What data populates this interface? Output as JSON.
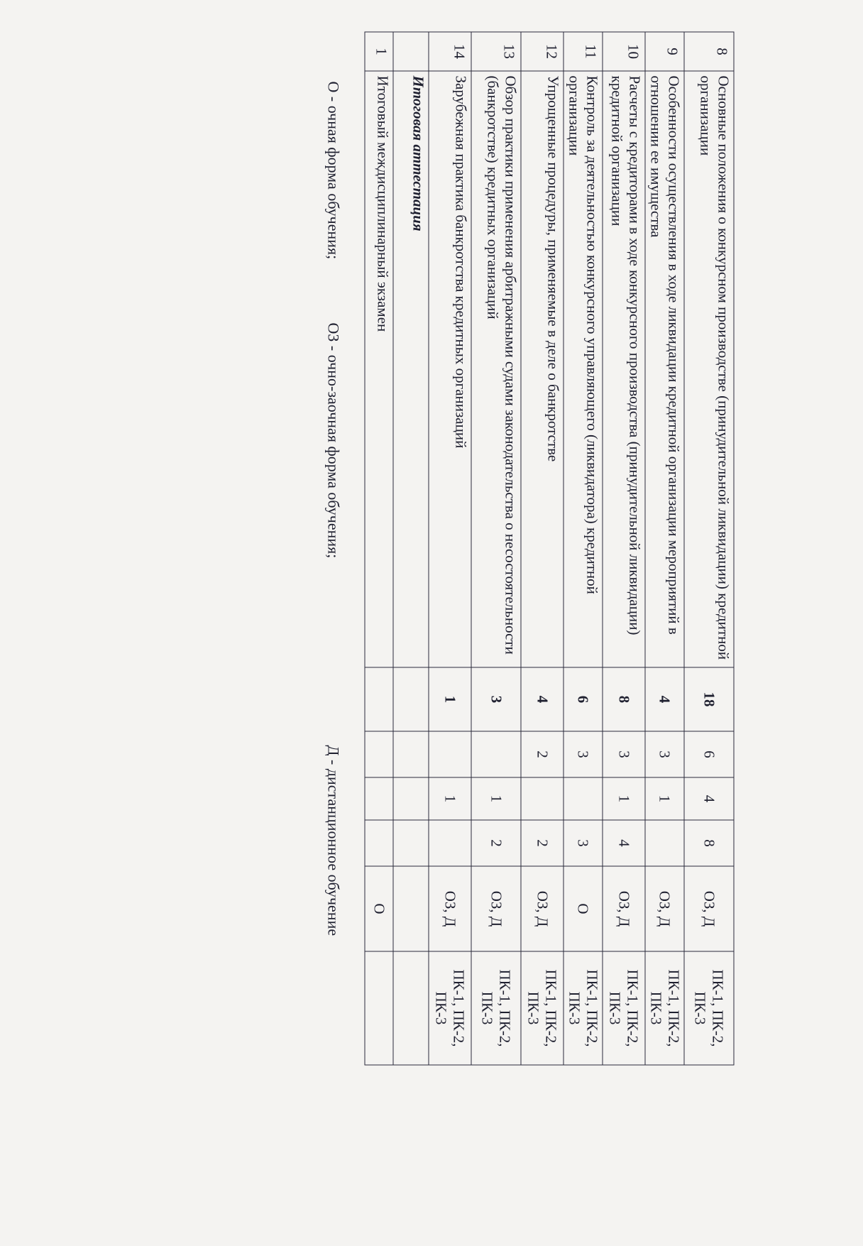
{
  "rows": [
    {
      "num": "8",
      "name": "Основные положения о конкурсном производстве (принудительной ликвидации) кредитной организации",
      "total": "18",
      "c1": "6",
      "c2": "4",
      "c3": "8",
      "form": "ОЗ, Д",
      "comp": "ПК-1, ПК-2, ПК-3"
    },
    {
      "num": "9",
      "name": "Особенности осуществления в ходе ликвидации кредитной организации мероприятий в отношении ее имущества",
      "total": "4",
      "c1": "3",
      "c2": "1",
      "c3": "",
      "form": "ОЗ, Д",
      "comp": "ПК-1, ПК-2, ПК-3"
    },
    {
      "num": "10",
      "name": "Расчеты с кредиторами в ходе конкурсного производства (принудительной ликвидации) кредитной организации",
      "total": "8",
      "c1": "3",
      "c2": "1",
      "c3": "4",
      "form": "ОЗ, Д",
      "comp": "ПК-1, ПК-2, ПК-3"
    },
    {
      "num": "11",
      "name": "Контроль за деятельностью конкурсного управляющего (ликвидатора) кредитной организации",
      "total": "6",
      "c1": "3",
      "c2": "",
      "c3": "3",
      "form": "О",
      "comp": "ПК-1, ПК-2, ПК-3"
    },
    {
      "num": "12",
      "name": "Упрощенные процедуры, применяемые в деле о банкротстве",
      "total": "4",
      "c1": "2",
      "c2": "",
      "c3": "2",
      "form": "ОЗ, Д",
      "comp": "ПК-1, ПК-2, ПК-3"
    },
    {
      "num": "13",
      "name": "Обзор практики применения арбитражными судами законодательства о несостоятельности (банкротстве) кредитных организаций",
      "total": "3",
      "c1": "",
      "c2": "1",
      "c3": "2",
      "form": "ОЗ, Д",
      "comp": "ПК-1, ПК-2, ПК-3"
    },
    {
      "num": "14",
      "name": "Зарубежная практика банкротства кредитных организаций",
      "total": "1",
      "c1": "",
      "c2": "1",
      "c3": "",
      "form": "ОЗ, Д",
      "comp": "ПК-1, ПК-2, ПК-3"
    }
  ],
  "attestation_heading": "Итоговая аттестация",
  "final_row": {
    "num": "1",
    "name": "Итоговый междисциплинарный экзамен",
    "form": "О"
  },
  "legend": {
    "o": "О - очная форма обучения;",
    "oz": "ОЗ - очно-заочная форма обучения;",
    "d": "Д - дистанционное обучение"
  }
}
